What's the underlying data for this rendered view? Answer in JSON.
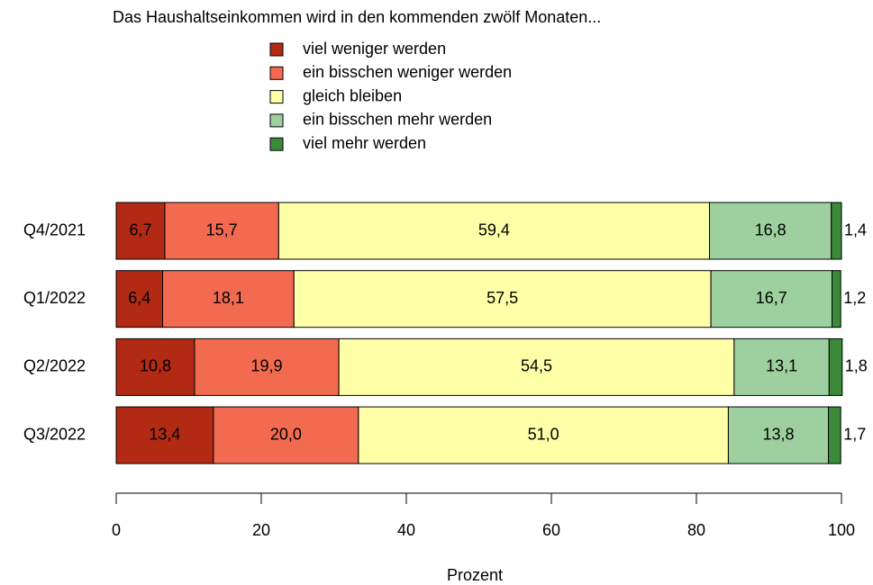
{
  "chart_data": {
    "type": "bar",
    "orientation": "horizontal",
    "stacked": true,
    "title": "Das Haushaltseinkommen wird in den kommenden zwölf Monaten...",
    "xlabel": "Prozent",
    "categories": [
      "Q4/2021",
      "Q1/2022",
      "Q2/2022",
      "Q3/2022"
    ],
    "series": [
      {
        "name": "viel weniger werden",
        "color": "#b22a14",
        "values": [
          6.7,
          6.4,
          10.8,
          13.4
        ],
        "value_labels": [
          "6,7",
          "6,4",
          "10,8",
          "13,4"
        ]
      },
      {
        "name": "ein bisschen weniger werden",
        "color": "#f26b50",
        "values": [
          15.7,
          18.1,
          19.9,
          20.0
        ],
        "value_labels": [
          "15,7",
          "18,1",
          "19,9",
          "20,0"
        ]
      },
      {
        "name": "gleich bleiben",
        "color": "#ffffa8",
        "values": [
          59.4,
          57.5,
          54.5,
          51.0
        ],
        "value_labels": [
          "59,4",
          "57,5",
          "54,5",
          "51,0"
        ]
      },
      {
        "name": "ein bisschen mehr werden",
        "color": "#9dd09e",
        "values": [
          16.8,
          16.7,
          13.1,
          13.8
        ],
        "value_labels": [
          "16,8",
          "16,7",
          "13,1",
          "13,8"
        ]
      },
      {
        "name": "viel mehr werden",
        "color": "#3a8a3a",
        "values": [
          1.4,
          1.2,
          1.8,
          1.7
        ],
        "value_labels": [
          "1,4",
          "1,2",
          "1,8",
          "1,7"
        ]
      }
    ],
    "xlim": [
      0,
      100
    ],
    "xticks": [
      0,
      20,
      40,
      60,
      80,
      100
    ],
    "grid": false,
    "legend": "top"
  }
}
